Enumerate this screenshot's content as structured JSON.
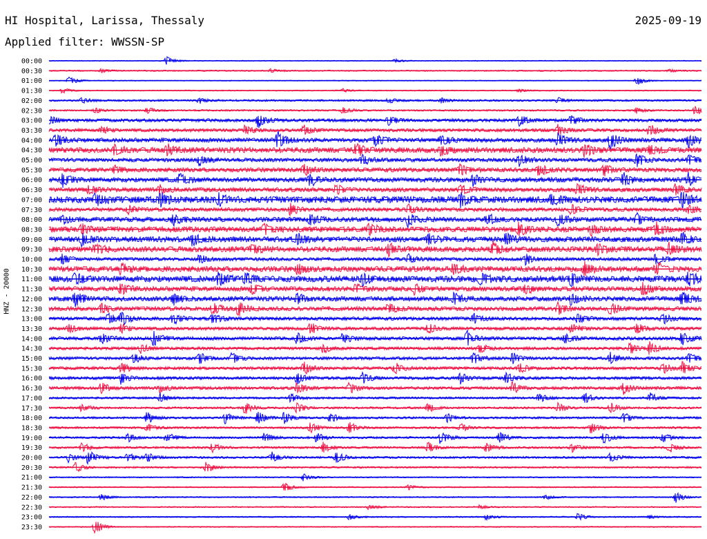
{
  "header": {
    "station": "HI Hospital, Larissa, Thessaly",
    "date": "2025-09-19",
    "filter": "Applied filter: WWSSN-SP",
    "channel_label": "HNZ - 20000"
  },
  "colors": {
    "even": "#0000ee",
    "odd": "#ee1144",
    "background": "#ffffff"
  },
  "chart_data": {
    "type": "line",
    "title": "HI Hospital, Larissa, Thessaly",
    "ylabel": "HNZ - 20000",
    "grid": false,
    "series_colors": [
      "#0000ee",
      "#ee1144"
    ],
    "rows": [
      {
        "label": "00:00",
        "bg": 0.4,
        "events": [
          [
            0.18,
            5
          ],
          [
            0.53,
            2
          ]
        ]
      },
      {
        "label": "00:30",
        "bg": 0.6,
        "events": [
          [
            0.08,
            2
          ],
          [
            0.34,
            2
          ],
          [
            0.95,
            2
          ]
        ]
      },
      {
        "label": "01:00",
        "bg": 0.4,
        "events": [
          [
            0.03,
            5
          ],
          [
            0.9,
            5
          ]
        ]
      },
      {
        "label": "01:30",
        "bg": 0.5,
        "events": [
          [
            0.02,
            3
          ],
          [
            0.45,
            2
          ],
          [
            0.72,
            2
          ]
        ]
      },
      {
        "label": "02:00",
        "bg": 0.9,
        "events": [
          [
            0.05,
            3
          ],
          [
            0.23,
            3
          ],
          [
            0.52,
            3
          ],
          [
            0.6,
            3
          ],
          [
            0.78,
            3
          ]
        ]
      },
      {
        "label": "02:30",
        "bg": 0.8,
        "events": [
          [
            0.07,
            3
          ],
          [
            0.15,
            3
          ],
          [
            0.45,
            4
          ],
          [
            0.9,
            3
          ],
          [
            0.99,
            5
          ]
        ]
      },
      {
        "label": "03:00",
        "bg": 1.5,
        "events": [
          [
            0.0,
            5
          ],
          [
            0.32,
            8
          ],
          [
            0.52,
            5
          ],
          [
            0.72,
            6
          ],
          [
            0.8,
            5
          ]
        ]
      },
      {
        "label": "03:30",
        "bg": 1.5,
        "events": [
          [
            0.08,
            4
          ],
          [
            0.3,
            5
          ],
          [
            0.39,
            6
          ],
          [
            0.78,
            6
          ],
          [
            0.92,
            7
          ]
        ]
      },
      {
        "label": "04:00",
        "bg": 2.0,
        "events": [
          [
            0.01,
            7
          ],
          [
            0.35,
            9
          ],
          [
            0.5,
            6
          ],
          [
            0.6,
            6
          ],
          [
            0.78,
            7
          ],
          [
            0.86,
            9
          ],
          [
            0.98,
            7
          ]
        ]
      },
      {
        "label": "04:30",
        "bg": 2.5,
        "events": [
          [
            0.1,
            5
          ],
          [
            0.18,
            6
          ],
          [
            0.47,
            7
          ],
          [
            0.6,
            6
          ],
          [
            0.82,
            7
          ],
          [
            0.92,
            5
          ]
        ]
      },
      {
        "label": "05:00",
        "bg": 1.8,
        "events": [
          [
            0.23,
            6
          ],
          [
            0.48,
            5
          ],
          [
            0.72,
            7
          ],
          [
            0.9,
            8
          ],
          [
            0.98,
            6
          ]
        ]
      },
      {
        "label": "05:30",
        "bg": 2.0,
        "events": [
          [
            0.1,
            4
          ],
          [
            0.39,
            6
          ],
          [
            0.63,
            6
          ],
          [
            0.75,
            7
          ],
          [
            0.85,
            6
          ]
        ]
      },
      {
        "label": "06:00",
        "bg": 2.2,
        "events": [
          [
            0.02,
            8
          ],
          [
            0.2,
            6
          ],
          [
            0.4,
            7
          ],
          [
            0.65,
            6
          ],
          [
            0.88,
            7
          ],
          [
            0.98,
            6
          ]
        ]
      },
      {
        "label": "06:30",
        "bg": 2.0,
        "events": [
          [
            0.06,
            5
          ],
          [
            0.17,
            5
          ],
          [
            0.44,
            6
          ],
          [
            0.63,
            5
          ],
          [
            0.81,
            6
          ],
          [
            0.96,
            5
          ]
        ]
      },
      {
        "label": "07:00",
        "bg": 3.0,
        "events": [
          [
            0.07,
            7
          ],
          [
            0.17,
            7
          ],
          [
            0.26,
            6
          ],
          [
            0.63,
            7
          ],
          [
            0.77,
            6
          ],
          [
            0.97,
            8
          ]
        ]
      },
      {
        "label": "07:30",
        "bg": 1.8,
        "events": [
          [
            0.12,
            5
          ],
          [
            0.37,
            6
          ],
          [
            0.55,
            5
          ],
          [
            0.8,
            6
          ],
          [
            0.98,
            5
          ]
        ]
      },
      {
        "label": "08:00",
        "bg": 2.2,
        "events": [
          [
            0.02,
            5
          ],
          [
            0.19,
            6
          ],
          [
            0.4,
            6
          ],
          [
            0.55,
            7
          ],
          [
            0.67,
            7
          ],
          [
            0.78,
            7
          ],
          [
            0.9,
            6
          ]
        ]
      },
      {
        "label": "08:30",
        "bg": 2.5,
        "events": [
          [
            0.05,
            5
          ],
          [
            0.33,
            6
          ],
          [
            0.49,
            7
          ],
          [
            0.72,
            7
          ],
          [
            0.83,
            6
          ],
          [
            0.93,
            7
          ]
        ]
      },
      {
        "label": "09:00",
        "bg": 2.5,
        "events": [
          [
            0.05,
            7
          ],
          [
            0.22,
            8
          ],
          [
            0.38,
            6
          ],
          [
            0.58,
            6
          ],
          [
            0.7,
            6
          ],
          [
            0.97,
            6
          ]
        ]
      },
      {
        "label": "09:30",
        "bg": 2.5,
        "events": [
          [
            0.07,
            6
          ],
          [
            0.31,
            6
          ],
          [
            0.52,
            6
          ],
          [
            0.68,
            7
          ],
          [
            0.84,
            6
          ],
          [
            0.95,
            6
          ]
        ]
      },
      {
        "label": "10:00",
        "bg": 1.6,
        "events": [
          [
            0.02,
            5
          ],
          [
            0.23,
            5
          ],
          [
            0.55,
            5
          ],
          [
            0.73,
            6
          ],
          [
            0.93,
            6
          ]
        ]
      },
      {
        "label": "10:30",
        "bg": 2.5,
        "events": [
          [
            0.11,
            6
          ],
          [
            0.38,
            6
          ],
          [
            0.62,
            6
          ],
          [
            0.82,
            7
          ],
          [
            0.93,
            7
          ]
        ]
      },
      {
        "label": "11:00",
        "bg": 2.8,
        "events": [
          [
            0.04,
            6
          ],
          [
            0.26,
            8
          ],
          [
            0.3,
            7
          ],
          [
            0.48,
            6
          ],
          [
            0.66,
            7
          ],
          [
            0.8,
            7
          ],
          [
            0.98,
            8
          ]
        ]
      },
      {
        "label": "11:30",
        "bg": 2.2,
        "events": [
          [
            0.11,
            6
          ],
          [
            0.31,
            6
          ],
          [
            0.47,
            6
          ],
          [
            0.56,
            6
          ],
          [
            0.73,
            6
          ],
          [
            0.91,
            7
          ]
        ]
      },
      {
        "label": "12:00",
        "bg": 2.2,
        "events": [
          [
            0.04,
            8
          ],
          [
            0.19,
            6
          ],
          [
            0.38,
            6
          ],
          [
            0.62,
            6
          ],
          [
            0.8,
            6
          ],
          [
            0.97,
            9
          ]
        ]
      },
      {
        "label": "12:30",
        "bg": 2.0,
        "events": [
          [
            0.08,
            6
          ],
          [
            0.25,
            6
          ],
          [
            0.29,
            8
          ],
          [
            0.52,
            6
          ],
          [
            0.78,
            6
          ],
          [
            0.86,
            6
          ]
        ]
      },
      {
        "label": "13:00",
        "bg": 1.6,
        "events": [
          [
            0.09,
            6
          ],
          [
            0.11,
            8
          ],
          [
            0.19,
            6
          ],
          [
            0.25,
            6
          ],
          [
            0.65,
            6
          ],
          [
            0.81,
            6
          ],
          [
            0.94,
            6
          ]
        ]
      },
      {
        "label": "13:30",
        "bg": 1.5,
        "events": [
          [
            0.03,
            5
          ],
          [
            0.11,
            5
          ],
          [
            0.4,
            6
          ],
          [
            0.58,
            6
          ],
          [
            0.8,
            6
          ],
          [
            0.9,
            6
          ]
        ]
      },
      {
        "label": "14:00",
        "bg": 1.6,
        "events": [
          [
            0.08,
            6
          ],
          [
            0.16,
            8
          ],
          [
            0.38,
            6
          ],
          [
            0.45,
            6
          ],
          [
            0.64,
            8
          ],
          [
            0.79,
            6
          ],
          [
            0.97,
            7
          ]
        ]
      },
      {
        "label": "14:30",
        "bg": 1.4,
        "events": [
          [
            0.14,
            5
          ],
          [
            0.42,
            5
          ],
          [
            0.66,
            5
          ],
          [
            0.89,
            6
          ],
          [
            0.92,
            7
          ]
        ]
      },
      {
        "label": "15:00",
        "bg": 1.4,
        "events": [
          [
            0.13,
            6
          ],
          [
            0.23,
            6
          ],
          [
            0.28,
            6
          ],
          [
            0.65,
            6
          ],
          [
            0.71,
            6
          ],
          [
            0.86,
            6
          ],
          [
            0.98,
            6
          ]
        ]
      },
      {
        "label": "15:30",
        "bg": 1.4,
        "events": [
          [
            0.11,
            6
          ],
          [
            0.39,
            7
          ],
          [
            0.53,
            6
          ],
          [
            0.72,
            6
          ],
          [
            0.94,
            6
          ],
          [
            0.97,
            6
          ]
        ]
      },
      {
        "label": "16:00",
        "bg": 1.4,
        "events": [
          [
            0.11,
            6
          ],
          [
            0.38,
            6
          ],
          [
            0.48,
            6
          ],
          [
            0.63,
            6
          ],
          [
            0.7,
            6
          ]
        ]
      },
      {
        "label": "16:30",
        "bg": 1.4,
        "events": [
          [
            0.08,
            6
          ],
          [
            0.17,
            5
          ],
          [
            0.38,
            6
          ],
          [
            0.46,
            6
          ],
          [
            0.71,
            6
          ],
          [
            0.88,
            6
          ]
        ]
      },
      {
        "label": "17:00",
        "bg": 1.0,
        "events": [
          [
            0.17,
            5
          ],
          [
            0.37,
            5
          ],
          [
            0.75,
            5
          ],
          [
            0.82,
            6
          ],
          [
            0.92,
            6
          ]
        ]
      },
      {
        "label": "17:30",
        "bg": 1.0,
        "events": [
          [
            0.05,
            5
          ],
          [
            0.3,
            7
          ],
          [
            0.38,
            6
          ],
          [
            0.58,
            5
          ],
          [
            0.78,
            5
          ],
          [
            0.86,
            6
          ]
        ]
      },
      {
        "label": "18:00",
        "bg": 1.0,
        "events": [
          [
            0.15,
            6
          ],
          [
            0.27,
            6
          ],
          [
            0.32,
            7
          ],
          [
            0.36,
            6
          ],
          [
            0.43,
            6
          ],
          [
            0.61,
            5
          ],
          [
            0.88,
            6
          ]
        ]
      },
      {
        "label": "18:30",
        "bg": 1.0,
        "events": [
          [
            0.15,
            5
          ],
          [
            0.4,
            6
          ],
          [
            0.46,
            6
          ],
          [
            0.63,
            5
          ],
          [
            0.83,
            6
          ]
        ]
      },
      {
        "label": "19:00",
        "bg": 1.0,
        "events": [
          [
            0.12,
            5
          ],
          [
            0.18,
            6
          ],
          [
            0.33,
            6
          ],
          [
            0.41,
            6
          ],
          [
            0.6,
            8
          ],
          [
            0.69,
            6
          ],
          [
            0.85,
            6
          ],
          [
            0.94,
            5
          ]
        ]
      },
      {
        "label": "19:30",
        "bg": 1.0,
        "events": [
          [
            0.05,
            5
          ],
          [
            0.25,
            5
          ],
          [
            0.42,
            6
          ],
          [
            0.58,
            6
          ],
          [
            0.67,
            6
          ],
          [
            0.8,
            5
          ],
          [
            0.95,
            6
          ]
        ]
      },
      {
        "label": "20:00",
        "bg": 1.0,
        "events": [
          [
            0.03,
            5
          ],
          [
            0.06,
            8
          ],
          [
            0.12,
            5
          ],
          [
            0.15,
            5
          ],
          [
            0.34,
            6
          ],
          [
            0.44,
            7
          ],
          [
            0.86,
            5
          ]
        ]
      },
      {
        "label": "20:30",
        "bg": 0.8,
        "events": [
          [
            0.04,
            6
          ],
          [
            0.24,
            6
          ]
        ]
      },
      {
        "label": "21:00",
        "bg": 0.6,
        "events": [
          [
            0.39,
            4
          ]
        ]
      },
      {
        "label": "21:30",
        "bg": 0.6,
        "events": [
          [
            0.36,
            5
          ],
          [
            0.55,
            3
          ]
        ]
      },
      {
        "label": "22:00",
        "bg": 0.6,
        "events": [
          [
            0.08,
            4
          ],
          [
            0.76,
            3
          ],
          [
            0.96,
            6
          ]
        ]
      },
      {
        "label": "22:30",
        "bg": 0.6,
        "events": [
          [
            0.49,
            3
          ],
          [
            0.66,
            2
          ]
        ]
      },
      {
        "label": "23:00",
        "bg": 0.6,
        "events": [
          [
            0.46,
            3
          ],
          [
            0.67,
            3
          ],
          [
            0.81,
            4
          ],
          [
            0.92,
            2
          ]
        ]
      },
      {
        "label": "23:30",
        "bg": 0.5,
        "events": [
          [
            0.07,
            8
          ]
        ]
      }
    ]
  }
}
